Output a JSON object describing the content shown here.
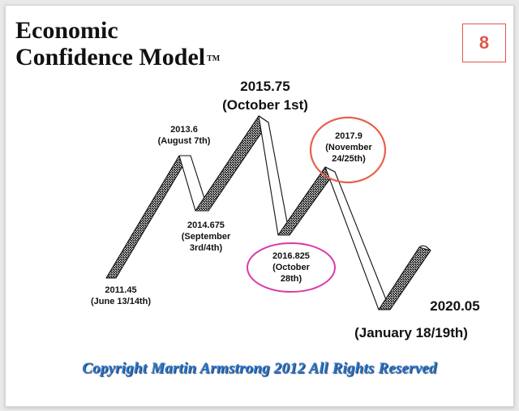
{
  "title_line1": "Economic",
  "title_line2": "Confidence Model",
  "trademark": "TM",
  "page_number": "8",
  "colors": {
    "badge": "#e2574c",
    "circle_red": "#e8604c",
    "circle_pink": "#d93aa8",
    "copyright": "#2a74c8"
  },
  "labels": {
    "p2011": "2011.45\n(June 13/14th)",
    "p2013": "2013.6\n(August 7th)",
    "p2014": "2014.675\n(September\n3rd/4th)",
    "p2015": "2015.75\n(October 1st)",
    "p2016": "2016.825\n(October\n28th)",
    "p2017": "2017.9\n(November\n24/25th)",
    "p2020": "2020.05",
    "p2020_date": "(January 18/19th)"
  },
  "copyright": "Copyright Martin Armstrong 2012 All Rights Reserved"
}
